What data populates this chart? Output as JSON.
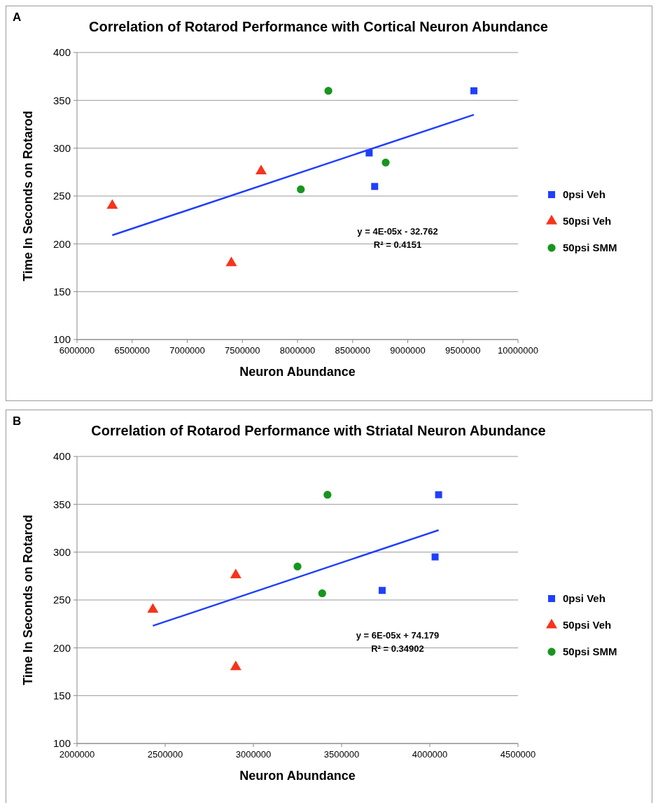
{
  "chart_data": [
    {
      "type": "scatter",
      "title": "Correlation of Rotarod Performance with Cortical Neuron Abundance",
      "xlabel": "Neuron Abundance",
      "ylabel": "Time In Seconds on Rotarod",
      "annotations": [
        "A",
        "y = 4E-05x - 32.762",
        "R² = 0.4151"
      ],
      "xlim": [
        6000000,
        10000000
      ],
      "xticks": [
        6000000,
        6500000,
        7000000,
        7500000,
        8000000,
        8500000,
        9000000,
        9500000,
        10000000
      ],
      "ylim": [
        100,
        400
      ],
      "yticks": [
        100,
        150,
        200,
        250,
        300,
        350,
        400
      ],
      "grid": "y",
      "legend": "right",
      "series": [
        {
          "name": "0psi Veh",
          "color": "#1f3ffb",
          "marker": "square",
          "x": [
            9600000,
            8650000,
            8700000
          ],
          "values": [
            360,
            295,
            260
          ]
        },
        {
          "name": "50psi Veh",
          "color": "#f7331b",
          "marker": "triangle",
          "x": [
            6320000,
            7400000,
            7670000
          ],
          "values": [
            240,
            180,
            276
          ]
        },
        {
          "name": "50psi SMM",
          "color": "#18951f",
          "marker": "circle",
          "x": [
            8280000,
            8030000,
            8800000
          ],
          "values": [
            360,
            257,
            285
          ]
        },
        {
          "type": "line",
          "color": "#1f3ffb",
          "marker": "none",
          "x": [
            6320000,
            9600000
          ],
          "values": [
            209,
            335
          ]
        }
      ]
    },
    {
      "type": "scatter",
      "title": "Correlation of Rotarod Performance with Striatal Neuron Abundance",
      "xlabel": "Neuron Abundance",
      "ylabel": "Time In Seconds on Rotarod",
      "annotations": [
        "B",
        "y = 6E-05x + 74.179",
        "R² = 0.34902"
      ],
      "xlim": [
        2000000,
        4500000
      ],
      "xticks": [
        2000000,
        2500000,
        3000000,
        3500000,
        4000000,
        4500000
      ],
      "ylim": [
        100,
        400
      ],
      "yticks": [
        100,
        150,
        200,
        250,
        300,
        350,
        400
      ],
      "grid": "y",
      "legend": "right",
      "series": [
        {
          "name": "0psi Veh",
          "color": "#1f3ffb",
          "marker": "square",
          "x": [
            4050000,
            4030000,
            3730000
          ],
          "values": [
            360,
            295,
            260
          ]
        },
        {
          "name": "50psi Veh",
          "color": "#f7331b",
          "marker": "triangle",
          "x": [
            2430000,
            2900000,
            2900000
          ],
          "values": [
            240,
            180,
            276
          ]
        },
        {
          "name": "50psi SMM",
          "color": "#18951f",
          "marker": "circle",
          "x": [
            3420000,
            3390000,
            3250000
          ],
          "values": [
            360,
            257,
            285
          ]
        },
        {
          "type": "line",
          "color": "#1f3ffb",
          "marker": "none",
          "x": [
            2430000,
            4050000
          ],
          "values": [
            223,
            323
          ]
        }
      ]
    }
  ]
}
